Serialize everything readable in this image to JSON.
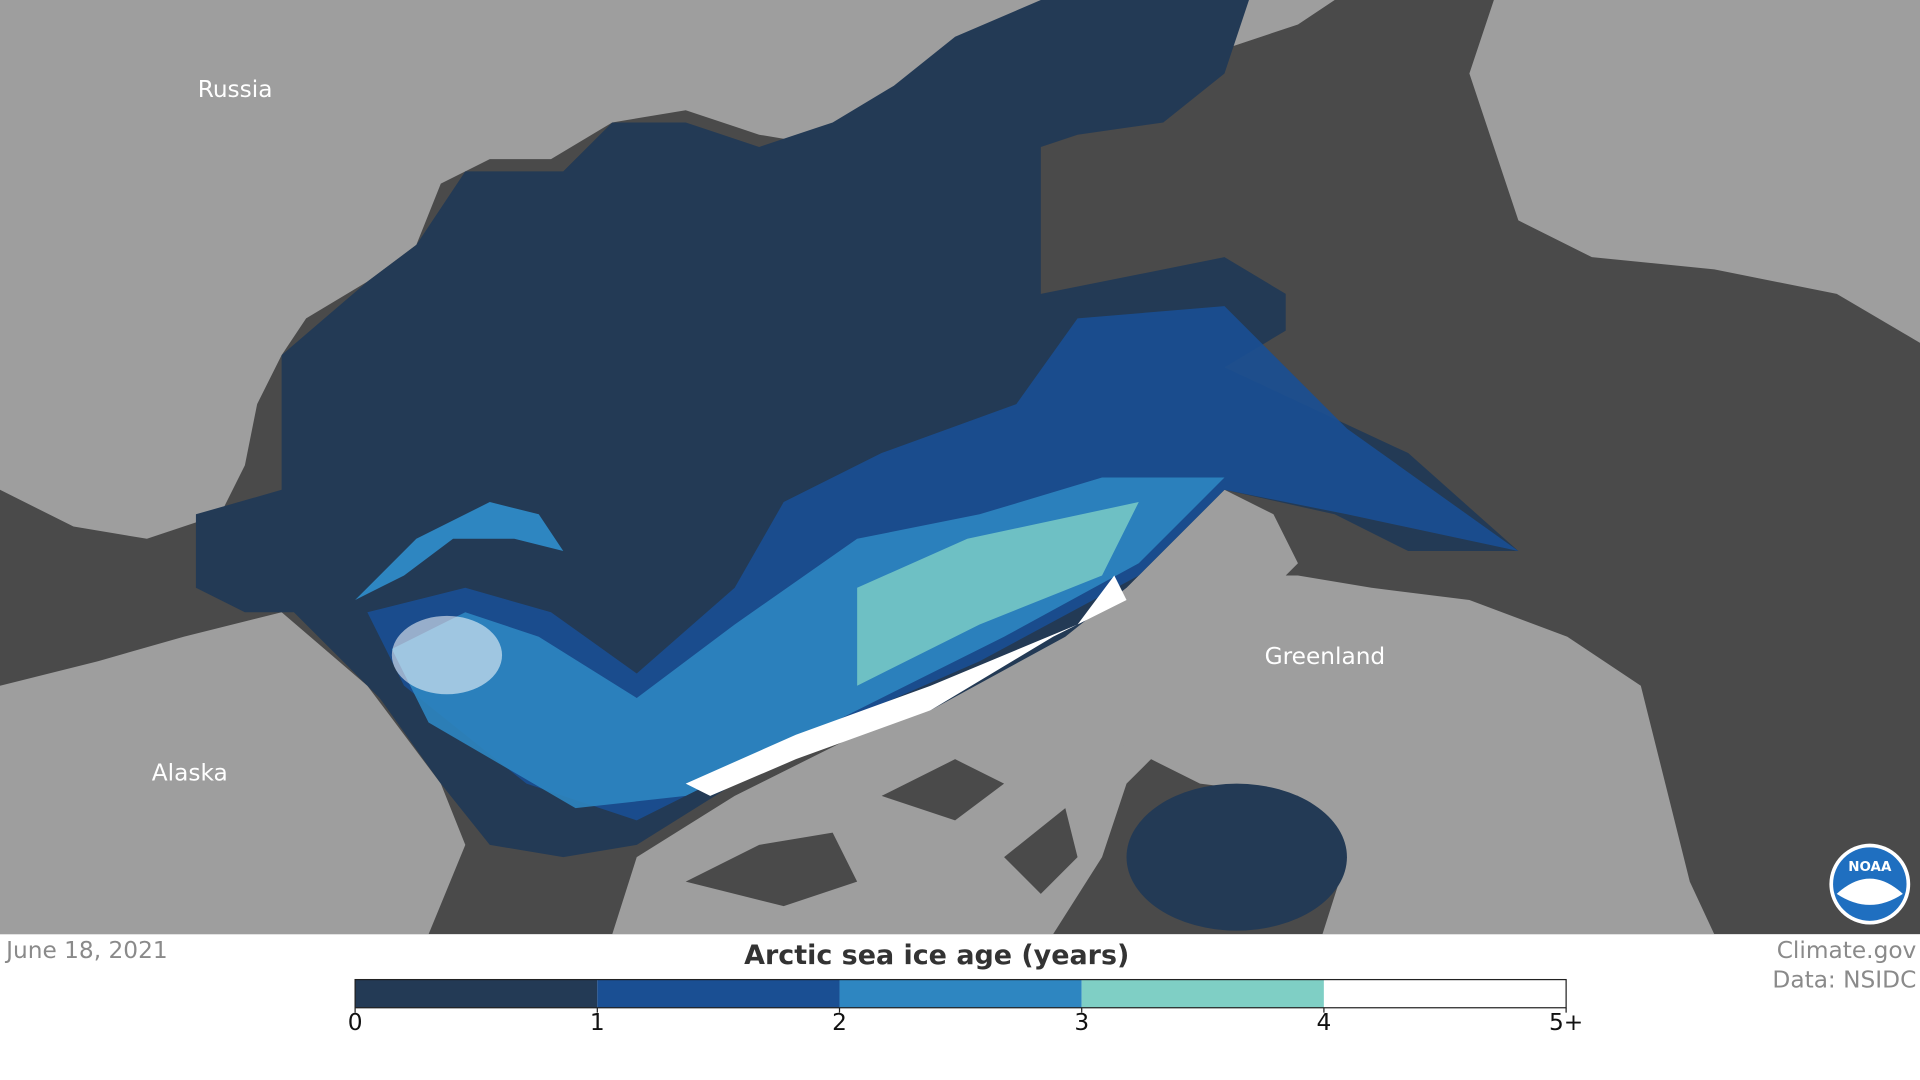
{
  "map": {
    "labels": [
      "Russia",
      "Alaska",
      "Greenland"
    ],
    "logo": "NOAA"
  },
  "footer": {
    "date": "June 18, 2021",
    "credit": "Climate.gov",
    "source": "Data: NSIDC"
  },
  "legend": {
    "title": "Arctic sea ice age (years)",
    "ticks": [
      0,
      1,
      2,
      3,
      4,
      {
        "value": 5,
        "label": "5+"
      }
    ],
    "colors": [
      "#233a55",
      "#1a4f93",
      "#2e86c1",
      "#7fcfc5",
      "#ffffff"
    ]
  }
}
